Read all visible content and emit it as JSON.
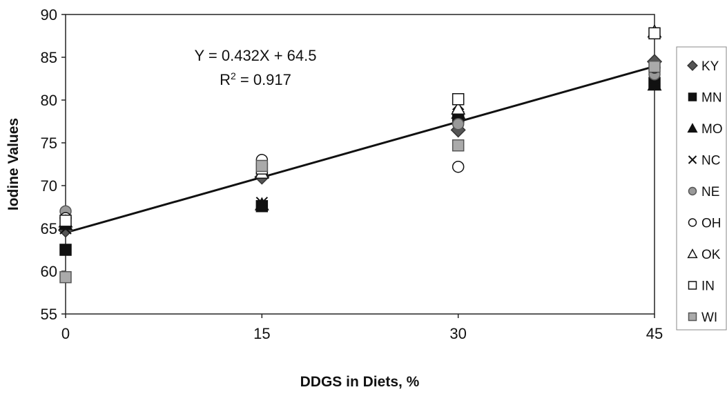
{
  "chart_data": {
    "type": "scatter",
    "xlabel": "DDGS in Diets, %",
    "ylabel": "Iodine Values",
    "xlim": [
      0,
      45
    ],
    "ylim": [
      55,
      90
    ],
    "xticks": [
      0,
      15,
      30,
      45
    ],
    "yticks": [
      55,
      60,
      65,
      70,
      75,
      80,
      85,
      90
    ],
    "grid": false,
    "legend_position": "right",
    "annotation": {
      "equation": "Y = 0.432X + 64.5",
      "r2_prefix": "R",
      "r2_superscript": "2",
      "r2_value": " = 0.917"
    },
    "trendline": {
      "slope": 0.432,
      "intercept": 64.5
    },
    "series": [
      {
        "name": "KY",
        "marker": "diamond",
        "fill": "#555555",
        "stroke": "#333333",
        "points": [
          [
            0,
            64.8
          ],
          [
            15,
            71.0
          ],
          [
            30,
            76.5
          ],
          [
            45,
            84.5
          ]
        ]
      },
      {
        "name": "MN",
        "marker": "square",
        "fill": "#111111",
        "stroke": "#111111",
        "points": [
          [
            0,
            62.5
          ],
          [
            15,
            67.6
          ],
          [
            30,
            78.0
          ],
          [
            45,
            82.0
          ]
        ]
      },
      {
        "name": "MO",
        "marker": "triangle",
        "fill": "#111111",
        "stroke": "#111111",
        "points": [
          [
            0,
            65.5
          ],
          [
            15,
            67.8
          ],
          [
            30,
            78.5
          ],
          [
            45,
            81.8
          ]
        ]
      },
      {
        "name": "NC",
        "marker": "x",
        "fill": "none",
        "stroke": "#111111",
        "points": [
          [
            0,
            65.0
          ],
          [
            15,
            68.0
          ],
          [
            30,
            79.5
          ],
          [
            45,
            82.5
          ]
        ]
      },
      {
        "name": "NE",
        "marker": "circle",
        "fill": "#999999",
        "stroke": "#555555",
        "points": [
          [
            0,
            67.0
          ],
          [
            15,
            72.5
          ],
          [
            30,
            77.2
          ],
          [
            45,
            83.0
          ]
        ]
      },
      {
        "name": "OH",
        "marker": "circle",
        "fill": "#ffffff",
        "stroke": "#111111",
        "points": [
          [
            0,
            66.2
          ],
          [
            15,
            73.0
          ],
          [
            30,
            72.2
          ],
          [
            45,
            83.8
          ]
        ]
      },
      {
        "name": "OK",
        "marker": "triangle",
        "fill": "#ffffff",
        "stroke": "#111111",
        "points": [
          [
            0,
            65.8
          ],
          [
            15,
            71.5
          ],
          [
            30,
            79.0
          ],
          [
            45,
            88.0
          ]
        ]
      },
      {
        "name": "IN",
        "marker": "square",
        "fill": "#ffffff",
        "stroke": "#111111",
        "points": [
          [
            0,
            65.9
          ],
          [
            15,
            72.0
          ],
          [
            30,
            80.1
          ],
          [
            45,
            87.8
          ]
        ]
      },
      {
        "name": "WI",
        "marker": "square",
        "fill": "#aaaaaa",
        "stroke": "#555555",
        "points": [
          [
            0,
            59.3
          ],
          [
            15,
            72.3
          ],
          [
            30,
            74.7
          ],
          [
            45,
            83.9
          ]
        ]
      }
    ]
  }
}
